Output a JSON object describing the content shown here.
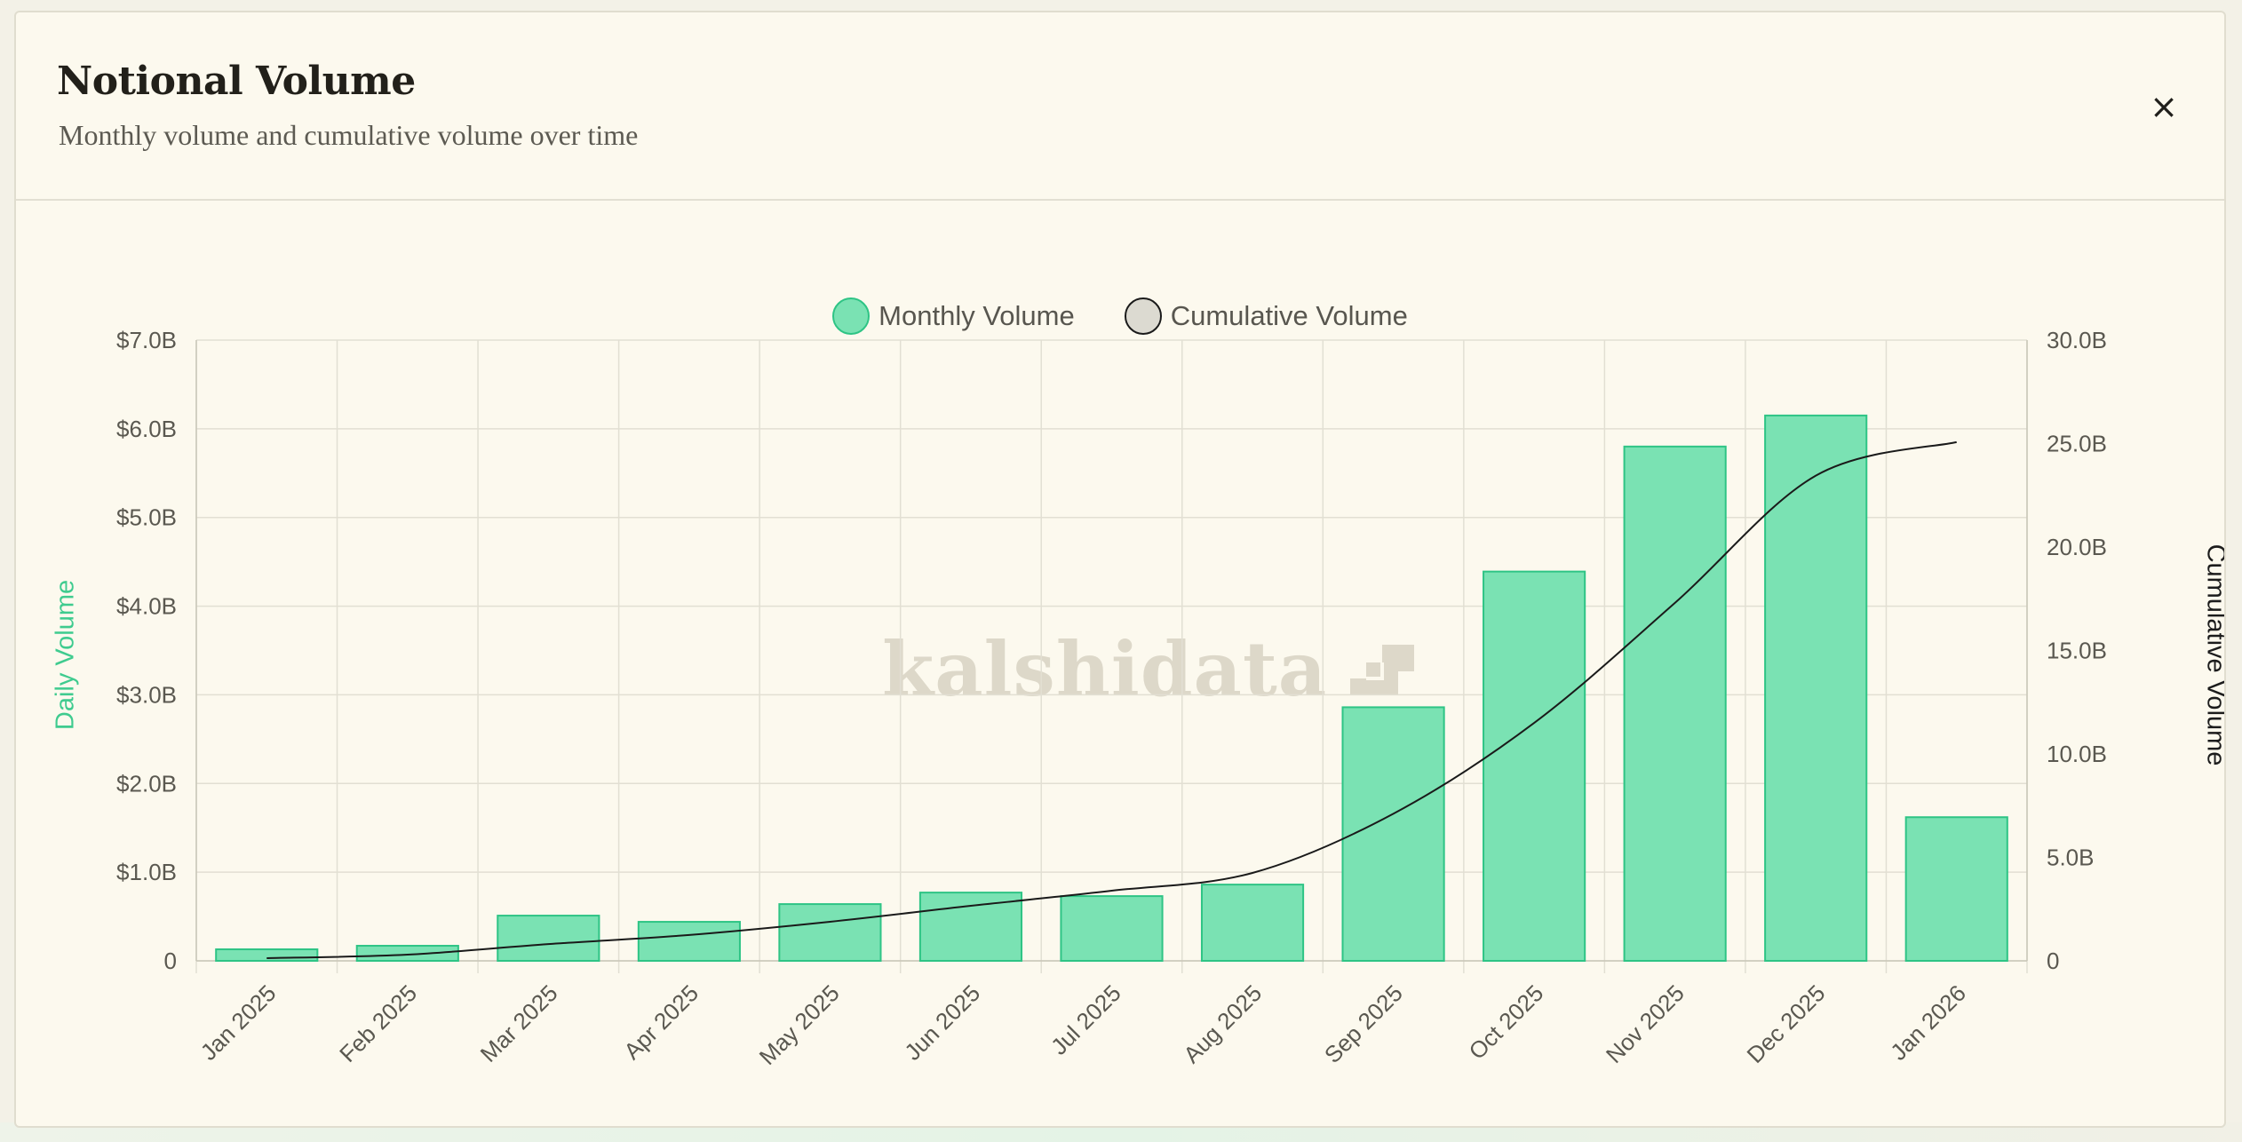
{
  "header": {
    "title": "Notional Volume",
    "subtitle": "Monthly volume and cumulative volume over time",
    "close_icon": "×"
  },
  "legend": {
    "monthly_label": "Monthly Volume",
    "cumulative_label": "Cumulative Volume"
  },
  "axes": {
    "left_title": "Daily Volume",
    "right_title": "Cumulative Volume"
  },
  "watermark": {
    "text": "kalshidata",
    "logo": "kalshidata-logo-icon"
  },
  "colors": {
    "bar_fill": "#7ae2b3",
    "bar_stroke": "#2ec485",
    "line": "#1a1a1a",
    "grid": "#e2dfd3",
    "left_axis_title": "#3fcb8f"
  },
  "chart_data": {
    "type": "bar",
    "title": "Notional Volume",
    "categories": [
      "Jan 2025",
      "Feb 2025",
      "Mar 2025",
      "Apr 2025",
      "May 2025",
      "Jun 2025",
      "Jul 2025",
      "Aug 2025",
      "Sep 2025",
      "Oct 2025",
      "Nov 2025",
      "Dec 2025",
      "Jan 2026"
    ],
    "series": [
      {
        "name": "Monthly Volume",
        "type": "bar",
        "axis": "left",
        "values": [
          0.13,
          0.17,
          0.51,
          0.44,
          0.64,
          0.77,
          0.73,
          0.86,
          2.86,
          4.39,
          5.8,
          6.15,
          1.62
        ]
      },
      {
        "name": "Cumulative Volume",
        "type": "line",
        "axis": "right",
        "values": [
          0.13,
          0.3,
          0.81,
          1.25,
          1.89,
          2.66,
          3.39,
          4.25,
          7.11,
          11.5,
          17.3,
          23.45,
          25.07
        ]
      }
    ],
    "y_left": {
      "label": "Daily Volume",
      "ylim": [
        0,
        7
      ],
      "ticks": [
        0,
        1,
        2,
        3,
        4,
        5,
        6,
        7
      ],
      "tick_labels": [
        "0",
        "$1.0B",
        "$2.0B",
        "$3.0B",
        "$4.0B",
        "$5.0B",
        "$6.0B",
        "$7.0B"
      ]
    },
    "y_right": {
      "label": "Cumulative Volume",
      "ylim": [
        0,
        30
      ],
      "ticks": [
        0,
        5,
        10,
        15,
        20,
        25,
        30
      ],
      "tick_labels": [
        "0",
        "5.0B",
        "10.0B",
        "15.0B",
        "20.0B",
        "25.0B",
        "30.0B"
      ]
    },
    "grid": true,
    "legend_position": "top-center"
  }
}
